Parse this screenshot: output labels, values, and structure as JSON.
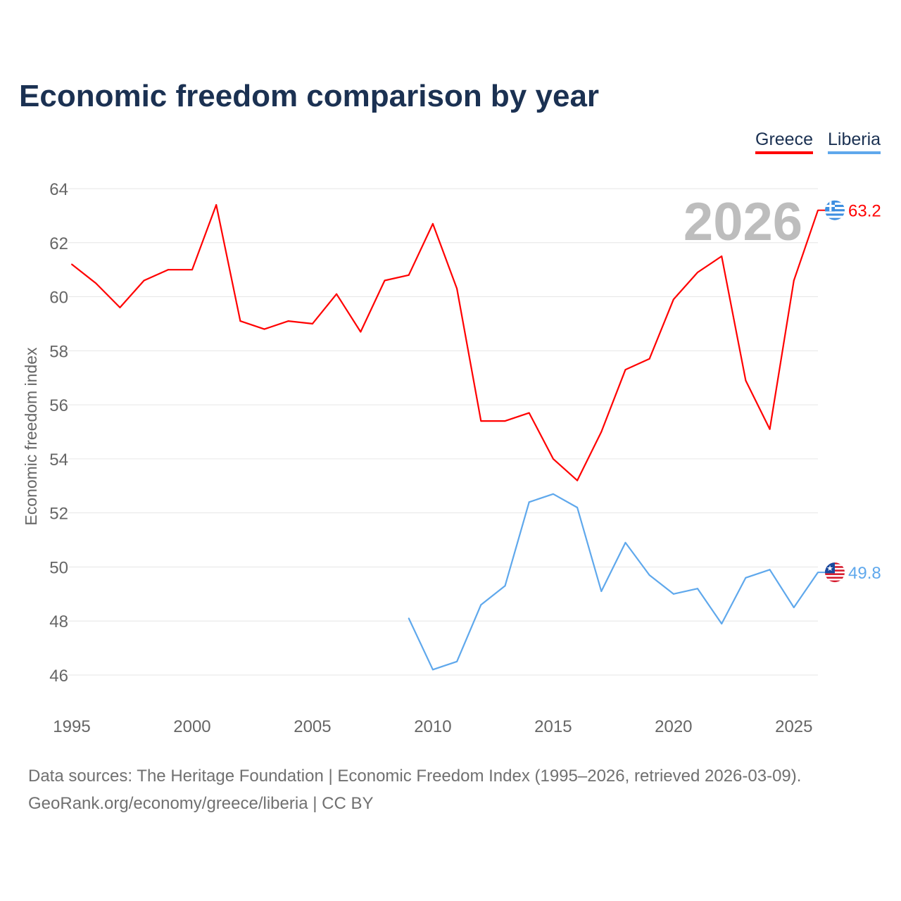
{
  "title": "Economic freedom comparison by year",
  "year_watermark": "2026",
  "footer": {
    "line1": "Data sources: The Heritage Foundation | Economic Freedom Index (1995–2026, retrieved 2026-03-09).",
    "line2": "GeoRank.org/economy/greece/liberia | CC BY"
  },
  "chart_data": {
    "type": "line",
    "title": "Economic freedom comparison by year",
    "xlabel": "",
    "ylabel": "Economic freedom index",
    "xlim": [
      1995,
      2026
    ],
    "ylim": [
      46,
      64
    ],
    "xticks": [
      "1995",
      "2000",
      "2005",
      "2010",
      "2015",
      "2020",
      "2025"
    ],
    "yticks": [
      "46",
      "48",
      "50",
      "52",
      "54",
      "56",
      "58",
      "60",
      "62",
      "64"
    ],
    "grid": true,
    "legend_position": "top-right",
    "series": [
      {
        "name": "Greece",
        "color": "#ff0000",
        "end_label": "63.2",
        "flag": "greece-flag",
        "x": [
          1995,
          1996,
          1997,
          1998,
          1999,
          2000,
          2001,
          2002,
          2003,
          2004,
          2005,
          2006,
          2007,
          2008,
          2009,
          2010,
          2011,
          2012,
          2013,
          2014,
          2015,
          2016,
          2017,
          2018,
          2019,
          2020,
          2021,
          2022,
          2023,
          2024,
          2025,
          2026
        ],
        "values": [
          61.2,
          60.5,
          59.6,
          60.6,
          61.0,
          61.0,
          63.4,
          59.1,
          58.8,
          59.1,
          59.0,
          60.1,
          58.7,
          60.6,
          60.8,
          62.7,
          60.3,
          55.4,
          55.4,
          55.7,
          54.0,
          53.2,
          55.0,
          57.3,
          57.7,
          59.9,
          60.9,
          61.5,
          56.9,
          55.1,
          60.6,
          63.2
        ]
      },
      {
        "name": "Liberia",
        "color": "#5fa8ec",
        "end_label": "49.8",
        "flag": "liberia-flag",
        "x": [
          2009,
          2010,
          2011,
          2012,
          2013,
          2014,
          2015,
          2016,
          2017,
          2018,
          2019,
          2020,
          2021,
          2022,
          2023,
          2024,
          2025,
          2026
        ],
        "values": [
          48.1,
          46.2,
          46.5,
          48.6,
          49.3,
          52.4,
          52.7,
          52.2,
          49.1,
          50.9,
          49.7,
          49.0,
          49.2,
          47.9,
          49.6,
          49.9,
          48.5,
          49.8
        ]
      }
    ]
  }
}
